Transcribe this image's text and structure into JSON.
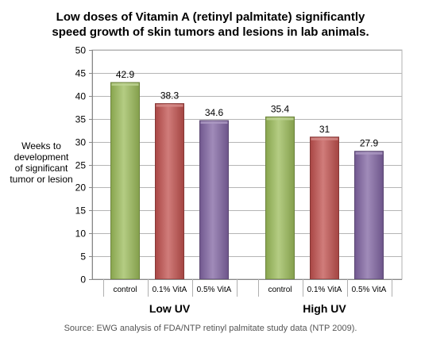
{
  "chart_data": {
    "type": "bar",
    "title_lines": [
      "Low doses of Vitamin A (retinyl palmitate) significantly",
      "speed growth of skin tumors and lesions in lab animals."
    ],
    "ylabel_lines": [
      "Weeks to",
      "development",
      "of significant",
      "tumor or lesion"
    ],
    "ylim": [
      0,
      50
    ],
    "yticks": [
      0,
      5,
      10,
      15,
      20,
      25,
      30,
      35,
      40,
      45,
      50
    ],
    "grid": true,
    "groups": [
      {
        "label": "Low UV",
        "bars": [
          {
            "category": "control",
            "value": 42.9,
            "label": "42.9",
            "color": "#9bbb59"
          },
          {
            "category": "0.1% VitA",
            "value": 38.3,
            "label": "38.3",
            "color": "#c0504d"
          },
          {
            "category": "0.5% VitA",
            "value": 34.6,
            "label": "34.6",
            "color": "#8064a2"
          }
        ]
      },
      {
        "label": "High UV",
        "bars": [
          {
            "category": "control",
            "value": 35.4,
            "label": "35.4",
            "color": "#9bbb59"
          },
          {
            "category": "0.1% VitA",
            "value": 31,
            "label": "31",
            "color": "#c0504d"
          },
          {
            "category": "0.5% VitA",
            "value": 27.9,
            "label": "27.9",
            "color": "#8064a2"
          }
        ]
      }
    ]
  },
  "source": "Source: EWG analysis of FDA/NTP retinyl palmitate study data (NTP 2009)."
}
